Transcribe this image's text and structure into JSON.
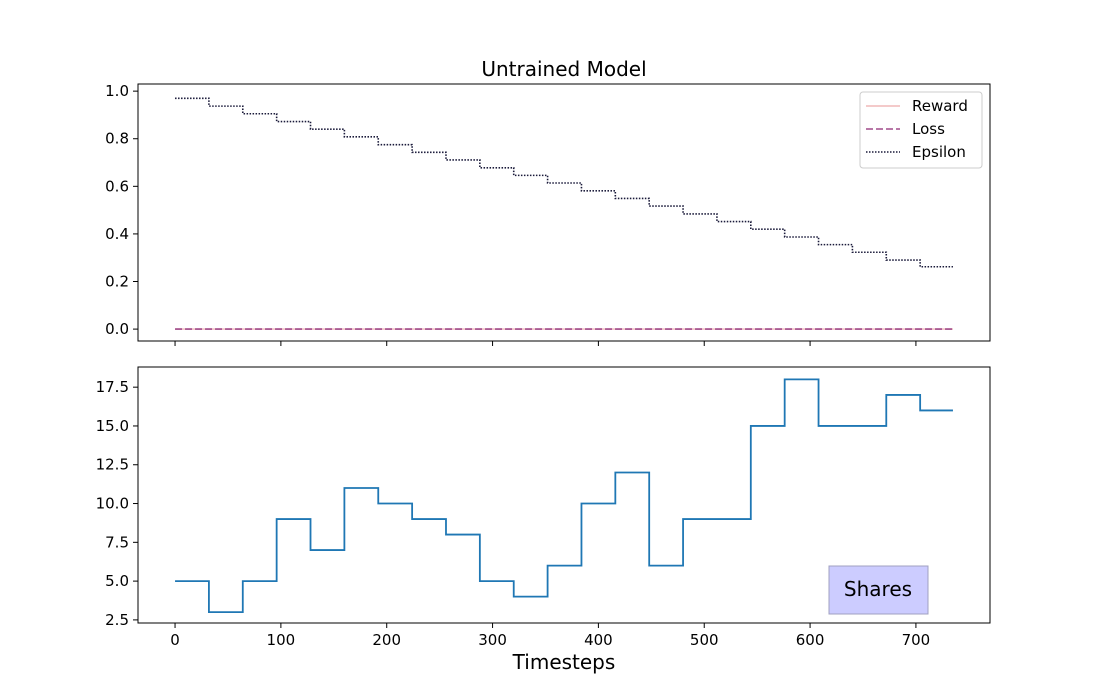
{
  "chart_data": [
    {
      "type": "line",
      "title": "Untrained Model",
      "xlabel": "",
      "ylabel": "",
      "xlim": [
        -35,
        770
      ],
      "ylim": [
        -0.05,
        1.03
      ],
      "x_ticks": [
        0,
        100,
        200,
        300,
        400,
        500,
        600,
        700
      ],
      "y_ticks": [
        0.0,
        0.2,
        0.4,
        0.6,
        0.8,
        1.0
      ],
      "y_tick_labels": [
        "0.0",
        "0.2",
        "0.4",
        "0.6",
        "0.8",
        "1.0"
      ],
      "legend_position": "top-right",
      "series": [
        {
          "name": "Reward",
          "style": "solid",
          "color": "#f0b8b8",
          "x": [
            0,
            735
          ],
          "y": [
            0,
            0
          ]
        },
        {
          "name": "Loss",
          "style": "dashed",
          "color": "#a04a8a",
          "x": [
            0,
            735
          ],
          "y": [
            0,
            0
          ]
        },
        {
          "name": "Epsilon",
          "style": "dotted-step",
          "color": "#1a1a3a",
          "x": [
            0,
            32,
            64,
            96,
            128,
            160,
            192,
            224,
            256,
            288,
            320,
            352,
            384,
            416,
            448,
            480,
            512,
            544,
            576,
            608,
            640,
            672,
            704,
            735
          ],
          "y": [
            0.97,
            0.937,
            0.905,
            0.872,
            0.84,
            0.808,
            0.775,
            0.743,
            0.711,
            0.678,
            0.646,
            0.614,
            0.581,
            0.549,
            0.517,
            0.484,
            0.452,
            0.42,
            0.387,
            0.355,
            0.323,
            0.29,
            0.262,
            0.262
          ]
        }
      ]
    },
    {
      "type": "line",
      "title": "",
      "xlabel": "Timesteps",
      "ylabel": "",
      "xlim": [
        -35,
        770
      ],
      "ylim": [
        2.3,
        18.8
      ],
      "x_ticks": [
        0,
        100,
        200,
        300,
        400,
        500,
        600,
        700
      ],
      "x_tick_labels": [
        "0",
        "100",
        "200",
        "300",
        "400",
        "500",
        "600",
        "700"
      ],
      "y_ticks": [
        2.5,
        5.0,
        7.5,
        10.0,
        12.5,
        15.0,
        17.5
      ],
      "y_tick_labels": [
        "2.5",
        "5.0",
        "7.5",
        "10.0",
        "12.5",
        "15.0",
        "17.5"
      ],
      "annotation": "Shares",
      "series": [
        {
          "name": "Shares",
          "style": "solid-step",
          "color": "#1f77b4",
          "x": [
            0,
            32,
            64,
            96,
            128,
            160,
            192,
            224,
            256,
            288,
            320,
            352,
            384,
            416,
            448,
            480,
            544,
            576,
            608,
            672,
            704,
            735
          ],
          "y": [
            5,
            3,
            5,
            9,
            7,
            11,
            10,
            9,
            8,
            5,
            4,
            6,
            10,
            12,
            6,
            9,
            15,
            18,
            15,
            17,
            16,
            16
          ]
        }
      ]
    }
  ]
}
